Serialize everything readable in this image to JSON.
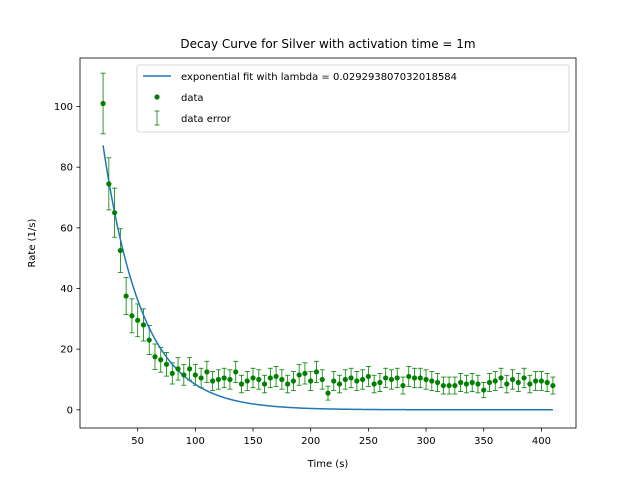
{
  "chart_data": {
    "type": "scatter",
    "title": "Decay Curve for Silver with activation time = 1m",
    "xlabel": "Time (s)",
    "ylabel": "Rate (1/s)",
    "xlim": [
      0,
      430
    ],
    "ylim": [
      -6,
      116
    ],
    "xticks": [
      50,
      100,
      150,
      200,
      250,
      300,
      350,
      400
    ],
    "yticks": [
      0,
      20,
      40,
      60,
      80,
      100
    ],
    "grid": false,
    "legend_position": "upper-right",
    "colors": {
      "fit": "#1f77b4",
      "data": "#008000"
    },
    "fit": {
      "name": "exponential fit with lambda = 0.029293807032018584",
      "lambda": 0.029293807032018584,
      "x_start": 20,
      "x_end": 410,
      "y_at_start": 87.2,
      "offset": 0
    },
    "data_label": "data",
    "error_label": "data error",
    "series": {
      "x": [
        20,
        25,
        30,
        35,
        40,
        45,
        50,
        55,
        60,
        65,
        70,
        75,
        80,
        85,
        90,
        95,
        100,
        105,
        110,
        115,
        120,
        125,
        130,
        135,
        140,
        145,
        150,
        155,
        160,
        165,
        170,
        175,
        180,
        185,
        190,
        195,
        200,
        205,
        210,
        215,
        220,
        225,
        230,
        235,
        240,
        245,
        250,
        255,
        260,
        265,
        270,
        275,
        280,
        285,
        290,
        295,
        300,
        305,
        310,
        315,
        320,
        325,
        330,
        335,
        340,
        345,
        350,
        355,
        360,
        365,
        370,
        375,
        380,
        385,
        390,
        395,
        400,
        405,
        410
      ],
      "y": [
        101,
        74.5,
        65,
        52.5,
        37.5,
        31,
        29.5,
        28,
        23,
        17.5,
        16.5,
        15,
        12,
        13.5,
        11.5,
        13.5,
        11.5,
        10.5,
        12.5,
        9.5,
        10,
        10.5,
        10,
        12.5,
        8.5,
        9.5,
        10.5,
        10,
        8.5,
        10.5,
        11,
        10,
        8.5,
        9.5,
        11.5,
        12,
        9.5,
        12.5,
        10,
        5.5,
        9.5,
        8.5,
        10,
        10.5,
        9.5,
        10,
        11,
        8.5,
        9,
        10.5,
        10,
        10.5,
        8,
        11,
        10.5,
        10.5,
        10,
        9.5,
        9,
        8,
        8,
        8,
        9,
        8.5,
        9,
        8.5,
        6.5,
        9,
        9.5,
        10.5,
        8.5,
        10,
        9,
        10.5,
        8.5,
        9.5,
        9.5,
        9,
        8
      ],
      "err": [
        10,
        8.6,
        8.1,
        7.2,
        6.1,
        5.6,
        5.4,
        5.3,
        4.8,
        4.2,
        4.1,
        3.9,
        3.5,
        3.7,
        3.4,
        3.7,
        3.4,
        3.2,
        3.5,
        3.1,
        3.2,
        3.2,
        3.2,
        3.5,
        2.9,
        3.1,
        3.2,
        3.2,
        2.9,
        3.2,
        3.3,
        3.2,
        2.9,
        3.1,
        3.4,
        3.5,
        3.1,
        3.5,
        3.2,
        2.3,
        3.1,
        2.9,
        3.2,
        3.2,
        3.1,
        3.2,
        3.3,
        2.9,
        3,
        3.2,
        3.2,
        3.2,
        2.8,
        3.3,
        3.2,
        3.2,
        3.2,
        3.1,
        3,
        2.8,
        2.8,
        2.8,
        3,
        2.9,
        3,
        2.9,
        2.5,
        3,
        3.1,
        3.2,
        2.9,
        3.2,
        3,
        3.2,
        2.9,
        3.1,
        3.1,
        3,
        2.8
      ]
    }
  }
}
